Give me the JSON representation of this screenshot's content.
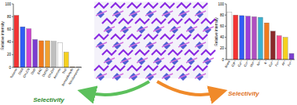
{
  "chart_data": [
    {
      "type": "bar",
      "y_label": "Relative intensity",
      "categories": [
        "Toluene",
        "DMA",
        "CH₃CN",
        "DMF",
        "EAC",
        "DMSO",
        "CH₃OH",
        "Acetone",
        "THF",
        "Benzaldehyde",
        "Nitrobenzene"
      ],
      "values": [
        82,
        64,
        61,
        44,
        42,
        42,
        41,
        39,
        24,
        1,
        0.5
      ],
      "colors": [
        "#f33333",
        "#2f5cf5",
        "#d040d0",
        "#7b3fd0",
        "#f07a1e",
        "#f0a030",
        "#c0c0c0",
        "#ffffff",
        "#f5d020",
        "#8a6030",
        "#555555"
      ],
      "ylim": [
        0,
        100
      ],
      "yticks": [
        0,
        20,
        40,
        60,
        80,
        100
      ],
      "annotations": [
        "Selectivity"
      ]
    },
    {
      "type": "bar",
      "y_label": "Relative intensity",
      "categories": [
        "Blank",
        "Cd²⁺",
        "Ca²⁺",
        "Co²⁺",
        "Mn²⁺",
        "Ni²⁺",
        "K⁺",
        "Cu²⁺",
        "Fe³⁺",
        "Al³⁺",
        "Fe²⁺"
      ],
      "values": [
        85,
        80,
        79,
        78,
        77,
        76,
        66,
        51,
        43,
        40,
        11
      ],
      "colors": [
        "#ffffff",
        "#f33333",
        "#2f5cf5",
        "#9b3fd8",
        "#b050c0",
        "#3ab0d0",
        "#f07a1e",
        "#8a2a2a",
        "#ff4a8a",
        "#f5d020",
        "#7b3fd0"
      ],
      "ylim": [
        0,
        100
      ],
      "yticks": [
        0,
        20,
        40,
        60,
        80,
        100
      ],
      "annotations": [
        "Selectivity"
      ]
    }
  ]
}
